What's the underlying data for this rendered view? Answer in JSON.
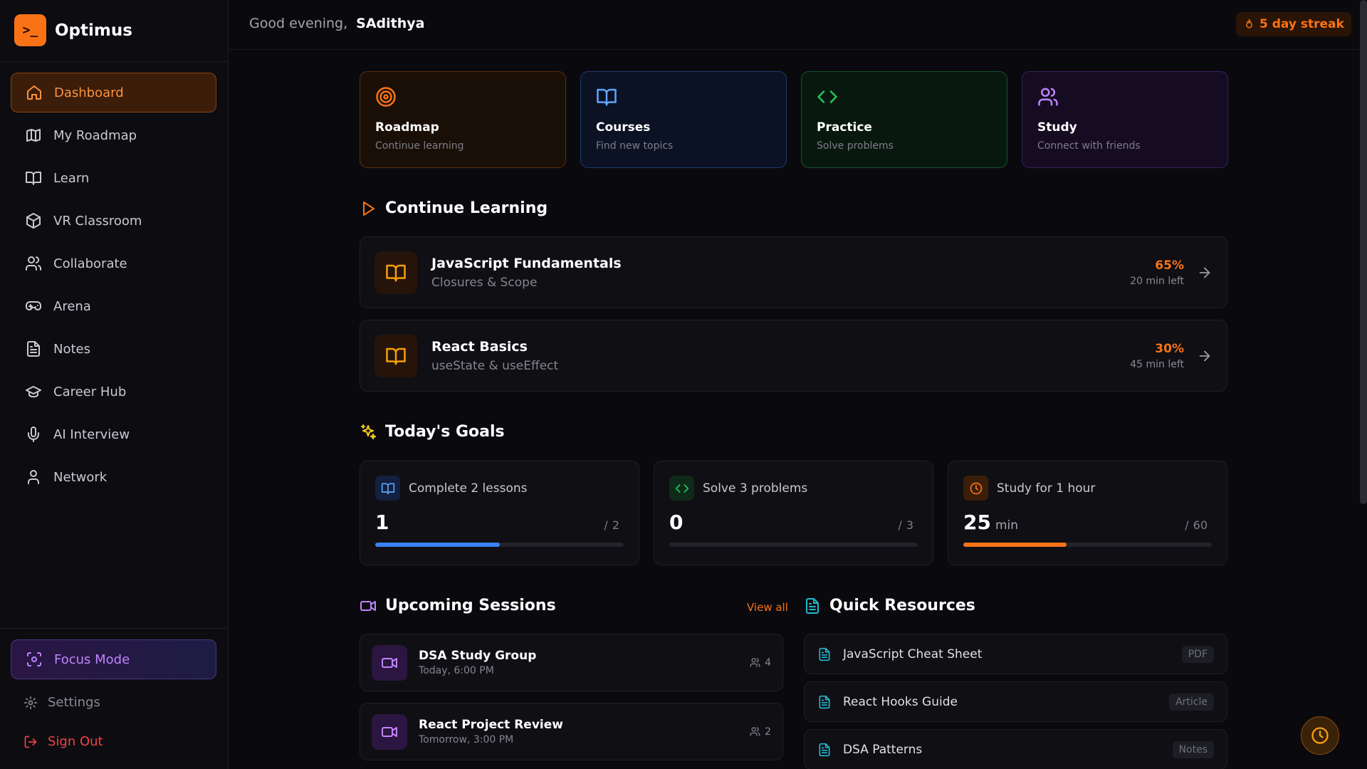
{
  "brand": {
    "logo": ">_",
    "name": "Optimus"
  },
  "nav": [
    "Dashboard",
    "My Roadmap",
    "Learn",
    "VR Classroom",
    "Collaborate",
    "Arena",
    "Notes",
    "Career Hub",
    "AI Interview",
    "Network"
  ],
  "focus_mode": "Focus Mode",
  "settings": "Settings",
  "sign_out": "Sign Out",
  "header": {
    "greeting": "Good evening,",
    "user": "SAdithya",
    "streak": "5 day streak"
  },
  "quick_cards": [
    {
      "title": "Roadmap",
      "subtitle": "Continue learning"
    },
    {
      "title": "Courses",
      "subtitle": "Find new topics"
    },
    {
      "title": "Practice",
      "subtitle": "Solve problems"
    },
    {
      "title": "Study",
      "subtitle": "Connect with friends"
    }
  ],
  "continue_learning": {
    "title": "Continue Learning",
    "items": [
      {
        "title": "JavaScript Fundamentals",
        "subtitle": "Closures & Scope",
        "progress": "65%",
        "time_left": "20 min left"
      },
      {
        "title": "React Basics",
        "subtitle": "useState & useEffect",
        "progress": "30%",
        "time_left": "45 min left"
      }
    ]
  },
  "goals": {
    "title": "Today's Goals",
    "separator": "/",
    "items": [
      {
        "label": "Complete 2 lessons",
        "current": 1,
        "target": 2
      },
      {
        "label": "Solve 3 problems",
        "current": 0,
        "target": 3
      },
      {
        "label": "Study for 1 hour",
        "current": 25,
        "unit": "min",
        "target": 60
      }
    ]
  },
  "sessions": {
    "title": "Upcoming Sessions",
    "view_all": "View all",
    "items": [
      {
        "title": "DSA Study Group",
        "time": "Today, 6:00 PM",
        "attendees": 4
      },
      {
        "title": "React Project Review",
        "time": "Tomorrow, 3:00 PM",
        "attendees": 2
      }
    ]
  },
  "resources": {
    "title": "Quick Resources",
    "items": [
      {
        "title": "JavaScript Cheat Sheet",
        "tag": "PDF"
      },
      {
        "title": "React Hooks Guide",
        "tag": "Article"
      },
      {
        "title": "DSA Patterns",
        "tag": "Notes"
      }
    ]
  }
}
